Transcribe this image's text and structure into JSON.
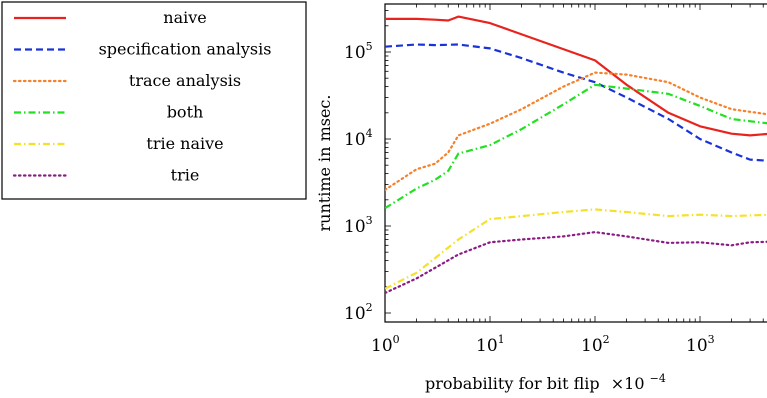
{
  "chart_data": {
    "type": "line",
    "xlabel": "probability for bit flip",
    "xlabel_factor_base": "×10",
    "xlabel_factor_exp": "−4",
    "ylabel": "runtime in msec.",
    "x_scale": "log",
    "y_scale": "log",
    "xlim": [
      1,
      4700
    ],
    "ylim": [
      130,
      400000
    ],
    "x_ticks": [
      {
        "base": "10",
        "exp": "0",
        "value": 1
      },
      {
        "base": "10",
        "exp": "1",
        "value": 10
      },
      {
        "base": "10",
        "exp": "2",
        "value": 100
      },
      {
        "base": "10",
        "exp": "3",
        "value": 1000
      }
    ],
    "y_ticks": [
      {
        "base": "10",
        "exp": "2",
        "value": 100
      },
      {
        "base": "10",
        "exp": "3",
        "value": 1000
      },
      {
        "base": "10",
        "exp": "4",
        "value": 10000
      },
      {
        "base": "10",
        "exp": "5",
        "value": 100000
      }
    ],
    "legend_position": "top-left, outside plot",
    "series": [
      {
        "name": "naive",
        "color": "#e8231d",
        "dash": "solid",
        "x": [
          1,
          2,
          3,
          4,
          5,
          10,
          100,
          200,
          500,
          1000,
          2000,
          3000,
          4700
        ],
        "y": [
          240000,
          240000,
          235000,
          230000,
          255000,
          215000,
          80000,
          42000,
          20000,
          14000,
          11500,
          11000,
          11500
        ]
      },
      {
        "name": "specification analysis",
        "color": "#1833d8",
        "dash": "dashed",
        "x": [
          1,
          2,
          3,
          5,
          10,
          20,
          50,
          100,
          200,
          500,
          1000,
          2000,
          3000,
          4700
        ],
        "y": [
          115000,
          122000,
          120000,
          122000,
          110000,
          85000,
          58000,
          45000,
          30000,
          17000,
          10000,
          7000,
          5800,
          5600
        ]
      },
      {
        "name": "trace analysis",
        "color": "#f5812b",
        "dash": "dotted",
        "x": [
          1,
          2,
          3,
          4,
          5,
          10,
          20,
          50,
          100,
          200,
          500,
          1000,
          2000,
          4700
        ],
        "y": [
          2600,
          4500,
          5200,
          7000,
          11000,
          15000,
          22000,
          40000,
          58000,
          55000,
          45000,
          30000,
          22000,
          19000
        ]
      },
      {
        "name": "both",
        "color": "#22e022",
        "dash": "dashdot",
        "x": [
          1,
          2,
          3,
          4,
          5,
          10,
          20,
          50,
          100,
          200,
          500,
          1000,
          2000,
          4700
        ],
        "y": [
          1600,
          2700,
          3400,
          4300,
          6800,
          8500,
          13000,
          25000,
          42000,
          38000,
          33000,
          24000,
          17000,
          15000
        ]
      },
      {
        "name": "trie naive",
        "color": "#f5e02a",
        "dash": "dashdot",
        "x": [
          1,
          2,
          5,
          10,
          20,
          50,
          100,
          200,
          500,
          1000,
          2000,
          4700
        ],
        "y": [
          190,
          290,
          700,
          1200,
          1300,
          1450,
          1550,
          1450,
          1300,
          1350,
          1300,
          1350
        ]
      },
      {
        "name": "trie",
        "color": "#8b1c85",
        "dash": "dotted",
        "x": [
          1,
          2,
          5,
          10,
          20,
          50,
          100,
          200,
          500,
          1000,
          2000,
          3000,
          4700
        ],
        "y": [
          170,
          250,
          470,
          650,
          700,
          760,
          850,
          760,
          640,
          650,
          600,
          650,
          660
        ]
      }
    ]
  }
}
